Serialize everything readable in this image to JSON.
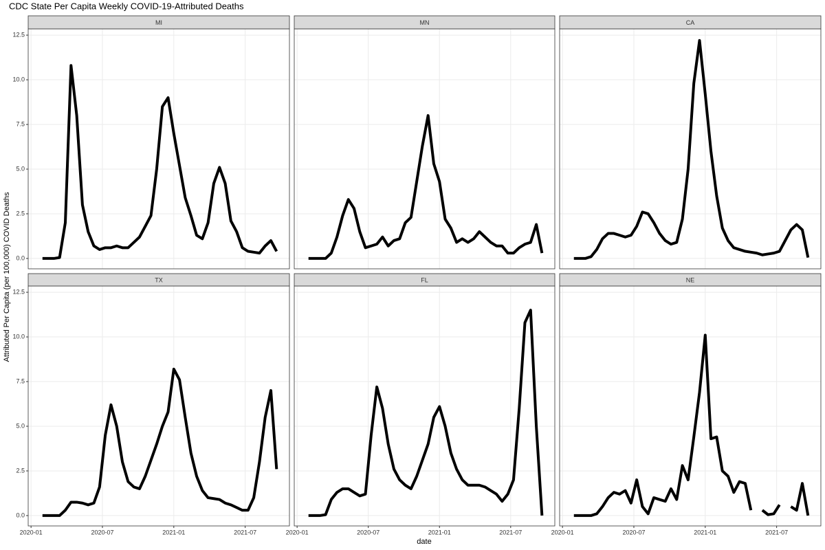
{
  "chart_data": {
    "type": "line",
    "title": "CDC State Per Capita Weekly COVID-19-Attributed Deaths",
    "xlabel": "date",
    "ylabel": "Attributed Per Capita (per 100,000) COVID Deaths",
    "color": "#000000",
    "grid": true,
    "xlim": [
      2019.98,
      2021.81
    ],
    "xticks": [
      {
        "value": 2020.0,
        "label": "2020-01"
      },
      {
        "value": 2020.5,
        "label": "2020-07"
      },
      {
        "value": 2021.0,
        "label": "2021-01"
      },
      {
        "value": 2021.5,
        "label": "2021-07"
      }
    ],
    "ylim": [
      -0.58,
      12.85
    ],
    "yticks": [
      {
        "value": 0,
        "label": "0.0"
      },
      {
        "value": 2.5,
        "label": "2.5"
      },
      {
        "value": 5,
        "label": "5.0"
      },
      {
        "value": 7.5,
        "label": "7.5"
      },
      {
        "value": 10,
        "label": "10.0"
      },
      {
        "value": 12.5,
        "label": "12.5"
      }
    ],
    "x": [
      2020.08,
      2020.12,
      2020.16,
      2020.2,
      2020.24,
      2020.28,
      2020.32,
      2020.36,
      2020.4,
      2020.44,
      2020.48,
      2020.52,
      2020.56,
      2020.6,
      2020.64,
      2020.68,
      2020.72,
      2020.76,
      2020.8,
      2020.84,
      2020.88,
      2020.92,
      2020.96,
      2021.0,
      2021.04,
      2021.08,
      2021.12,
      2021.16,
      2021.2,
      2021.24,
      2021.28,
      2021.32,
      2021.36,
      2021.4,
      2021.44,
      2021.48,
      2021.52,
      2021.56,
      2021.6,
      2021.64,
      2021.68,
      2021.72
    ],
    "series": [
      {
        "name": "MI",
        "values": [
          0,
          0,
          0,
          0.05,
          2,
          10.8,
          8,
          3,
          1.5,
          0.7,
          0.5,
          0.6,
          0.6,
          0.7,
          0.6,
          0.6,
          0.9,
          1.2,
          1.8,
          2.4,
          5,
          8.5,
          9,
          7,
          5.2,
          3.4,
          2.4,
          1.3,
          1.1,
          2,
          4.2,
          5.1,
          4.2,
          2.1,
          1.5,
          0.6,
          0.4,
          0.35,
          0.3,
          0.7,
          1.0,
          0.4
        ]
      },
      {
        "name": "MN",
        "values": [
          0,
          0,
          0,
          0,
          0.3,
          1.2,
          2.4,
          3.3,
          2.8,
          1.5,
          0.6,
          0.7,
          0.8,
          1.2,
          0.7,
          1.0,
          1.1,
          2.0,
          2.3,
          4.3,
          6.3,
          8.0,
          5.3,
          4.3,
          2.2,
          1.7,
          0.9,
          1.1,
          0.9,
          1.1,
          1.5,
          1.2,
          0.9,
          0.7,
          0.7,
          0.3,
          0.3,
          0.6,
          0.8,
          0.9,
          1.9,
          0.3
        ]
      },
      {
        "name": "CA",
        "values": [
          0,
          0,
          0,
          0.1,
          0.5,
          1.1,
          1.4,
          1.4,
          1.3,
          1.2,
          1.3,
          1.8,
          2.6,
          2.5,
          2.0,
          1.4,
          1.0,
          0.8,
          0.9,
          2.2,
          5.0,
          9.8,
          12.2,
          9.2,
          6.0,
          3.5,
          1.7,
          1.0,
          0.6,
          0.5,
          0.4,
          0.35,
          0.3,
          0.2,
          0.25,
          0.3,
          0.4,
          1.0,
          1.6,
          1.9,
          1.6,
          0.05
        ]
      },
      {
        "name": "TX",
        "values": [
          0,
          0,
          0,
          0,
          0.3,
          0.75,
          0.75,
          0.7,
          0.6,
          0.7,
          1.6,
          4.5,
          6.2,
          5.0,
          3.0,
          1.9,
          1.6,
          1.5,
          2.2,
          3.1,
          4.0,
          5.0,
          5.8,
          8.2,
          7.6,
          5.5,
          3.5,
          2.2,
          1.4,
          1.0,
          0.95,
          0.9,
          0.7,
          0.6,
          0.45,
          0.3,
          0.3,
          1.0,
          3.0,
          5.5,
          7.0,
          2.6
        ]
      },
      {
        "name": "FL",
        "values": [
          0,
          0,
          0,
          0.05,
          0.9,
          1.3,
          1.5,
          1.5,
          1.3,
          1.1,
          1.2,
          4.5,
          7.2,
          6.0,
          4.0,
          2.6,
          2.0,
          1.7,
          1.5,
          2.2,
          3.1,
          4.0,
          5.5,
          6.1,
          5.0,
          3.5,
          2.6,
          2.0,
          1.7,
          1.7,
          1.7,
          1.6,
          1.4,
          1.2,
          0.8,
          1.2,
          2.0,
          6.0,
          10.8,
          11.5,
          5.0,
          0
        ]
      },
      {
        "name": "NE",
        "values": [
          0,
          0,
          0,
          0,
          0.1,
          0.5,
          1.0,
          1.3,
          1.2,
          1.4,
          0.7,
          2.0,
          0.5,
          0.1,
          1.0,
          0.9,
          0.8,
          1.5,
          0.9,
          2.8,
          2.0,
          4.4,
          6.9,
          10.1,
          4.3,
          4.4,
          2.5,
          2.2,
          1.3,
          1.9,
          1.8,
          0.3,
          null,
          0.3,
          0.05,
          0.1,
          0.6,
          null,
          0.5,
          0.3,
          1.8,
          0
        ]
      }
    ]
  }
}
